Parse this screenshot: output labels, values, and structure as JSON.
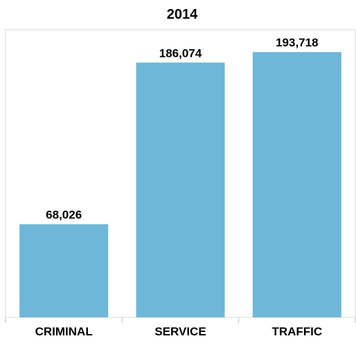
{
  "chart_data": {
    "type": "bar",
    "title": "2014",
    "categories": [
      "CRIMINAL",
      "SERVICE",
      "TRAFFIC"
    ],
    "values": [
      68026,
      186074,
      193718
    ],
    "data_labels": [
      "68,026",
      "186,074",
      "193,718"
    ],
    "xlabel": "",
    "ylabel": "",
    "ylim": [
      0,
      210000
    ],
    "grid": false,
    "legend": "none",
    "bar_color": "#6fb7d8"
  }
}
